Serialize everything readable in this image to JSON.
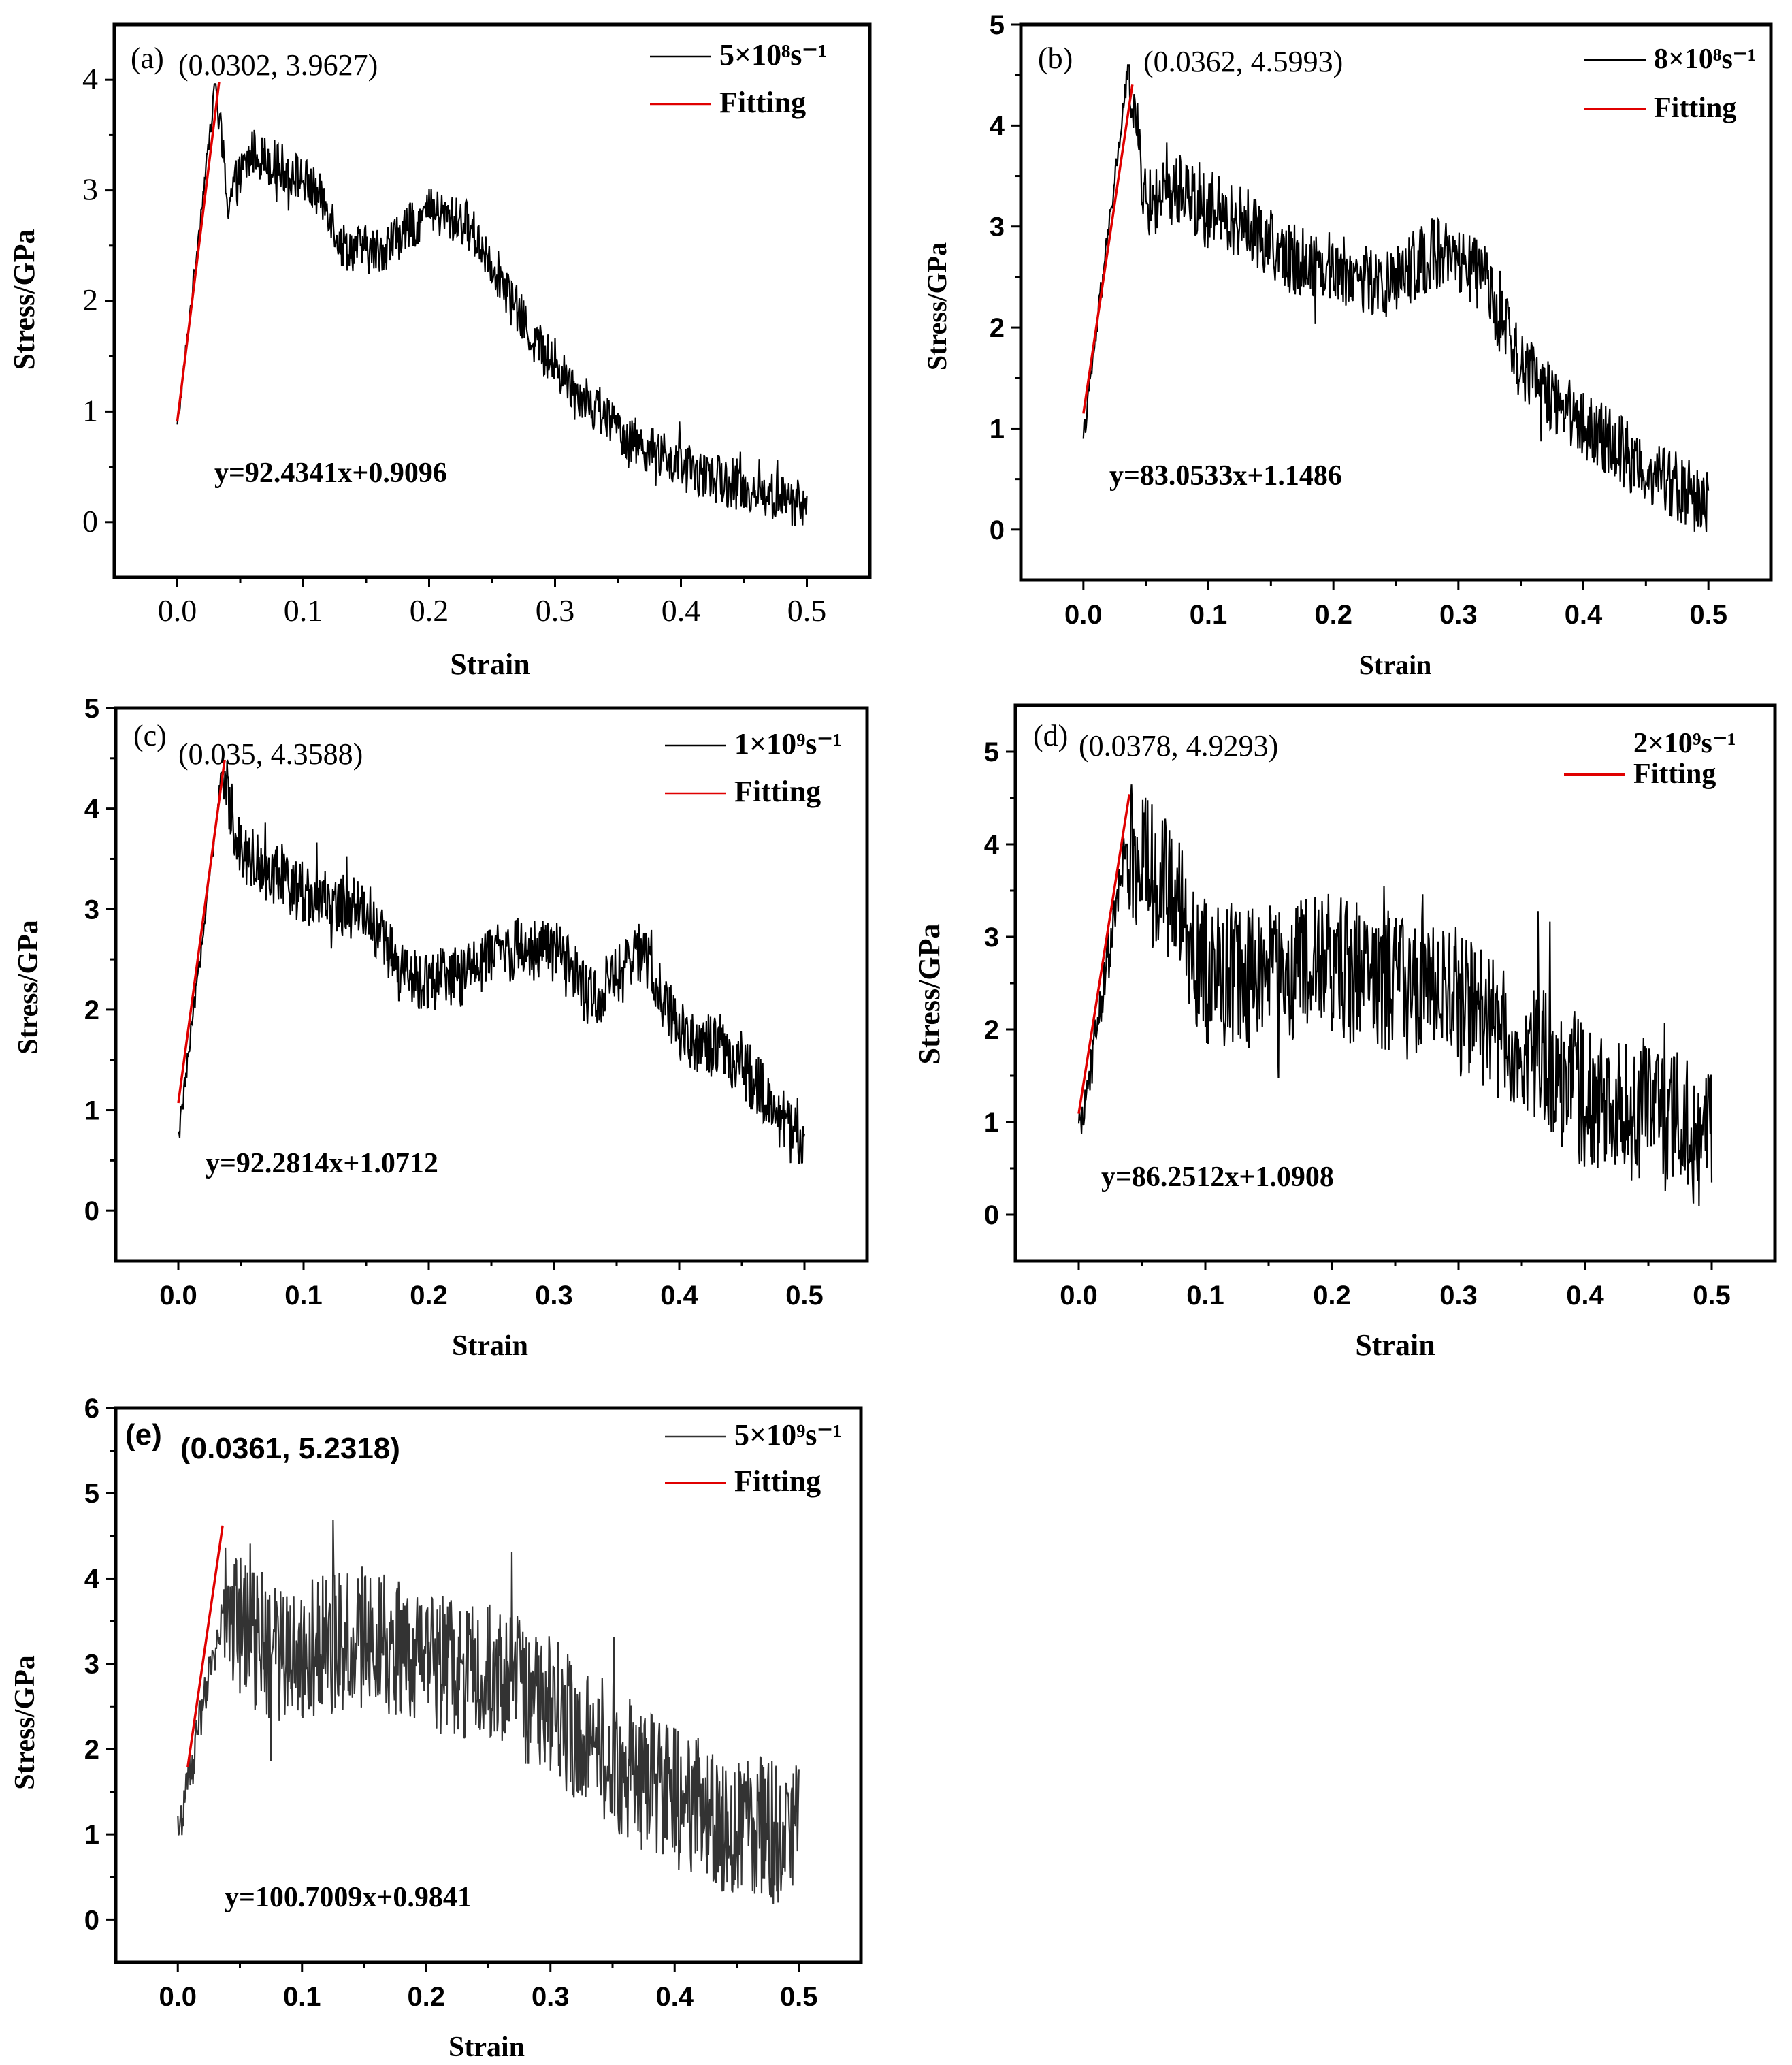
{
  "chart_data": [
    {
      "id": "a",
      "type": "line",
      "panel_label": "(a)",
      "peak_label": "(0.0302,  3.9627)",
      "equation": "y=92.4341x+0.9096",
      "xlabel": "Strain",
      "ylabel": "Stress/GPa",
      "xticks": [
        "0.0",
        "0.1",
        "0.2",
        "0.3",
        "0.4",
        "0.5"
      ],
      "yticks": [
        "0",
        "1",
        "2",
        "3",
        "4"
      ],
      "xlim": [
        -0.05,
        0.55
      ],
      "ylim": [
        -0.5,
        4.5
      ],
      "series": [
        {
          "name": "5×10⁸s⁻¹",
          "color": "#000000",
          "style": "noisy",
          "noise": 0.22,
          "envelope": [
            [
              0,
              0.85
            ],
            [
              0.0302,
              3.9627
            ],
            [
              0.04,
              2.9
            ],
            [
              0.06,
              3.35
            ],
            [
              0.1,
              3.1
            ],
            [
              0.12,
              2.85
            ],
            [
              0.13,
              2.5
            ],
            [
              0.16,
              2.45
            ],
            [
              0.2,
              2.8
            ],
            [
              0.23,
              2.7
            ],
            [
              0.25,
              2.35
            ],
            [
              0.28,
              1.7
            ],
            [
              0.3,
              1.4
            ],
            [
              0.33,
              1.05
            ],
            [
              0.36,
              0.75
            ],
            [
              0.4,
              0.5
            ],
            [
              0.45,
              0.3
            ],
            [
              0.5,
              0.15
            ]
          ]
        },
        {
          "name": "Fitting",
          "color": "#e00000",
          "slope": 92.4341,
          "intercept": 0.9096,
          "range": [
            0,
            0.0332
          ]
        }
      ]
    },
    {
      "id": "b",
      "type": "line",
      "panel_label": "(b)",
      "peak_label": "(0.0362,  4.5993)",
      "equation": "y=83.0533x+1.1486",
      "xlabel": "Strain",
      "ylabel": "Stress/GPa",
      "xticks": [
        "0.0",
        "0.1",
        "0.2",
        "0.3",
        "0.4",
        "0.5"
      ],
      "yticks": [
        "0",
        "1",
        "2",
        "3",
        "4",
        "5"
      ],
      "xlim": [
        -0.05,
        0.55
      ],
      "ylim": [
        -0.5,
        5
      ],
      "series": [
        {
          "name": "8×10⁸s⁻¹",
          "color": "#000000",
          "style": "noisy",
          "noise": 0.35,
          "envelope": [
            [
              0,
              0.9
            ],
            [
              0.0362,
              4.5993
            ],
            [
              0.05,
              3.2
            ],
            [
              0.08,
              3.4
            ],
            [
              0.1,
              3.1
            ],
            [
              0.13,
              3.05
            ],
            [
              0.16,
              2.7
            ],
            [
              0.2,
              2.6
            ],
            [
              0.24,
              2.4
            ],
            [
              0.28,
              2.75
            ],
            [
              0.32,
              2.5
            ],
            [
              0.35,
              1.6
            ],
            [
              0.4,
              1.05
            ],
            [
              0.45,
              0.6
            ],
            [
              0.5,
              0.25
            ]
          ]
        },
        {
          "name": "Fitting",
          "color": "#e00000",
          "slope": 83.0533,
          "intercept": 1.1486,
          "range": [
            0,
            0.0392
          ]
        }
      ]
    },
    {
      "id": "c",
      "type": "line",
      "panel_label": "(c)",
      "peak_label": "(0.035,  4.3588)",
      "equation": "y=92.2814x+1.0712",
      "xlabel": "Strain",
      "ylabel": "Stress/GPa",
      "xticks": [
        "0.0",
        "0.1",
        "0.2",
        "0.3",
        "0.4",
        "0.5"
      ],
      "yticks": [
        "0",
        "1",
        "2",
        "3",
        "4",
        "5"
      ],
      "xlim": [
        -0.05,
        0.55
      ],
      "ylim": [
        -0.5,
        5
      ],
      "series": [
        {
          "name": "1×10⁹s⁻¹",
          "color": "#000000",
          "style": "noisy",
          "noise": 0.32,
          "envelope": [
            [
              0,
              0.7
            ],
            [
              0.035,
              4.3588
            ],
            [
              0.05,
              3.6
            ],
            [
              0.08,
              3.3
            ],
            [
              0.12,
              3.05
            ],
            [
              0.15,
              3.0
            ],
            [
              0.18,
              2.3
            ],
            [
              0.22,
              2.3
            ],
            [
              0.26,
              2.6
            ],
            [
              0.3,
              2.6
            ],
            [
              0.33,
              2.1
            ],
            [
              0.37,
              2.55
            ],
            [
              0.4,
              1.8
            ],
            [
              0.45,
              1.45
            ],
            [
              0.5,
              0.6
            ]
          ]
        },
        {
          "name": "Fitting",
          "color": "#e00000",
          "slope": 92.2814,
          "intercept": 1.0712,
          "range": [
            0,
            0.037
          ]
        }
      ]
    },
    {
      "id": "d",
      "type": "line",
      "panel_label": "(d)",
      "peak_label": "(0.0378,  4.9293)",
      "equation": "y=86.2512x+1.0908",
      "xlabel": "Strain",
      "ylabel": "Stress/GPa",
      "xticks": [
        "0.0",
        "0.1",
        "0.2",
        "0.3",
        "0.4",
        "0.5"
      ],
      "yticks": [
        "0",
        "1",
        "2",
        "3",
        "4",
        "5"
      ],
      "xlim": [
        -0.05,
        0.55
      ],
      "ylim": [
        -0.5,
        5.5
      ],
      "series": [
        {
          "name": "2×10⁹s⁻¹",
          "color": "#000000",
          "style": "noisy",
          "noise": 0.8,
          "envelope": [
            [
              0,
              0.8
            ],
            [
              0.0378,
              4.0
            ],
            [
              0.07,
              3.5
            ],
            [
              0.1,
              2.6
            ],
            [
              0.15,
              2.6
            ],
            [
              0.2,
              2.7
            ],
            [
              0.25,
              2.5
            ],
            [
              0.3,
              2.3
            ],
            [
              0.35,
              1.8
            ],
            [
              0.4,
              1.3
            ],
            [
              0.45,
              1.1
            ],
            [
              0.5,
              0.8
            ]
          ]
        },
        {
          "name": "Fitting",
          "color": "#e00000",
          "slope": 86.2512,
          "intercept": 1.0908,
          "range": [
            0,
            0.04
          ]
        }
      ]
    },
    {
      "id": "e",
      "type": "line",
      "panel_label": "(e)",
      "peak_label": "(0.0361, 5.2318)",
      "equation": "y=100.7009x+0.9841",
      "xlabel": "Strain",
      "ylabel": "Stress/GPa",
      "xticks": [
        "0.0",
        "0.1",
        "0.2",
        "0.3",
        "0.4",
        "0.5"
      ],
      "yticks": [
        "0",
        "1",
        "2",
        "3",
        "4",
        "5",
        "6"
      ],
      "xlim": [
        -0.05,
        0.55
      ],
      "ylim": [
        -0.5,
        6
      ],
      "series": [
        {
          "name": "5×10⁹s⁻¹",
          "color": "#333333",
          "style": "noisy",
          "noise": 0.85,
          "envelope": [
            [
              0,
              1.0
            ],
            [
              0.0361,
              3.6
            ],
            [
              0.08,
              3.1
            ],
            [
              0.15,
              3.3
            ],
            [
              0.2,
              3.0
            ],
            [
              0.25,
              2.9
            ],
            [
              0.3,
              2.5
            ],
            [
              0.35,
              1.9
            ],
            [
              0.4,
              1.4
            ],
            [
              0.45,
              1.1
            ],
            [
              0.5,
              1.0
            ]
          ]
        },
        {
          "name": "Fitting",
          "color": "#e00000",
          "slope": 100.7009,
          "intercept": 0.9841,
          "range": [
            0.008,
            0.0361
          ]
        }
      ]
    }
  ]
}
